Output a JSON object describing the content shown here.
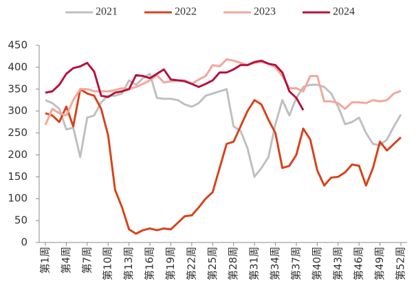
{
  "chart_data": {
    "type": "line",
    "categories": [
      "第1周",
      null,
      null,
      "第4周",
      null,
      null,
      "第7周",
      null,
      null,
      "第10周",
      null,
      null,
      "第13周",
      null,
      null,
      "第16周",
      null,
      null,
      "第19周",
      null,
      null,
      "第22周",
      null,
      null,
      "第25周",
      null,
      null,
      "第28周",
      null,
      null,
      "第31周",
      null,
      null,
      "第34周",
      null,
      null,
      "第37周",
      null,
      null,
      "第40周",
      null,
      null,
      "第43周",
      null,
      null,
      "第46周",
      null,
      null,
      "第49周",
      null,
      null,
      "第52周"
    ],
    "series": [
      {
        "name": "2021",
        "color": "#bfbfbf",
        "values": [
          325,
          318,
          305,
          258,
          262,
          195,
          285,
          290,
          320,
          335,
          335,
          340,
          370,
          360,
          375,
          385,
          330,
          328,
          328,
          325,
          315,
          310,
          318,
          335,
          340,
          345,
          350,
          265,
          255,
          215,
          150,
          170,
          195,
          270,
          325,
          290,
          330,
          355,
          360,
          360,
          355,
          340,
          310,
          270,
          275,
          285,
          250,
          225,
          222,
          235,
          265,
          292
        ]
      },
      {
        "name": "2022",
        "color": "#d6431b",
        "values": [
          295,
          290,
          275,
          310,
          265,
          350,
          340,
          335,
          305,
          245,
          120,
          80,
          30,
          20,
          28,
          32,
          28,
          32,
          30,
          45,
          60,
          62,
          80,
          100,
          115,
          170,
          225,
          230,
          265,
          300,
          325,
          315,
          280,
          250,
          170,
          175,
          200,
          260,
          235,
          165,
          130,
          148,
          150,
          160,
          178,
          175,
          130,
          170,
          230,
          210,
          225,
          240
        ]
      },
      {
        "name": "2023",
        "color": "#f4a699",
        "values": [
          268,
          305,
          295,
          290,
          325,
          350,
          350,
          345,
          345,
          345,
          348,
          352,
          350,
          355,
          362,
          370,
          382,
          365,
          368,
          370,
          370,
          362,
          372,
          380,
          405,
          402,
          418,
          415,
          410,
          405,
          410,
          412,
          408,
          400,
          380,
          352,
          352,
          345,
          380,
          380,
          322,
          322,
          318,
          305,
          320,
          320,
          318,
          325,
          322,
          325,
          340,
          346
        ]
      },
      {
        "name": "2024",
        "color": "#b5123e",
        "values": [
          342,
          345,
          360,
          385,
          398,
          402,
          410,
          390,
          335,
          332,
          342,
          345,
          350,
          382,
          380,
          375,
          385,
          395,
          372,
          370,
          368,
          362,
          355,
          362,
          370,
          388,
          388,
          395,
          405,
          405,
          412,
          415,
          408,
          405,
          388,
          345,
          330,
          302,
          null,
          null,
          null,
          null,
          null,
          null,
          null,
          null,
          null,
          null,
          null,
          null,
          null,
          null
        ]
      }
    ],
    "ylim": [
      0,
      450
    ],
    "yticks": [
      0,
      50,
      100,
      150,
      200,
      250,
      300,
      350,
      400,
      450
    ],
    "legend": "top"
  }
}
